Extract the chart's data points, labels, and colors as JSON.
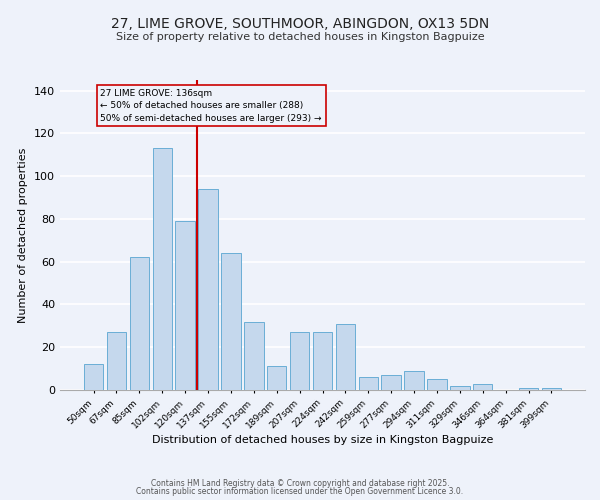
{
  "title1": "27, LIME GROVE, SOUTHMOOR, ABINGDON, OX13 5DN",
  "title2": "Size of property relative to detached houses in Kingston Bagpuize",
  "xlabel": "Distribution of detached houses by size in Kingston Bagpuize",
  "ylabel": "Number of detached properties",
  "bins": [
    "50sqm",
    "67sqm",
    "85sqm",
    "102sqm",
    "120sqm",
    "137sqm",
    "155sqm",
    "172sqm",
    "189sqm",
    "207sqm",
    "224sqm",
    "242sqm",
    "259sqm",
    "277sqm",
    "294sqm",
    "311sqm",
    "329sqm",
    "346sqm",
    "364sqm",
    "381sqm",
    "399sqm"
  ],
  "values": [
    12,
    27,
    62,
    113,
    79,
    94,
    64,
    32,
    11,
    27,
    27,
    31,
    6,
    7,
    9,
    5,
    2,
    3,
    0,
    1,
    1
  ],
  "bar_color": "#c5d8ed",
  "bar_edge_color": "#6aaed6",
  "vline_color": "#cc0000",
  "vline_x_index": 5,
  "annotation_title": "27 LIME GROVE: 136sqm",
  "annotation_line1": "← 50% of detached houses are smaller (288)",
  "annotation_line2": "50% of semi-detached houses are larger (293) →",
  "annotation_box_edge": "#cc0000",
  "annotation_box_face": "#eef2fa",
  "background_color": "#eef2fa",
  "grid_color": "#ffffff",
  "footer1": "Contains HM Land Registry data © Crown copyright and database right 2025.",
  "footer2": "Contains public sector information licensed under the Open Government Licence 3.0.",
  "ylim": [
    0,
    145
  ],
  "yticks": [
    0,
    20,
    40,
    60,
    80,
    100,
    120,
    140
  ],
  "title1_fontsize": 10,
  "title2_fontsize": 8.5
}
